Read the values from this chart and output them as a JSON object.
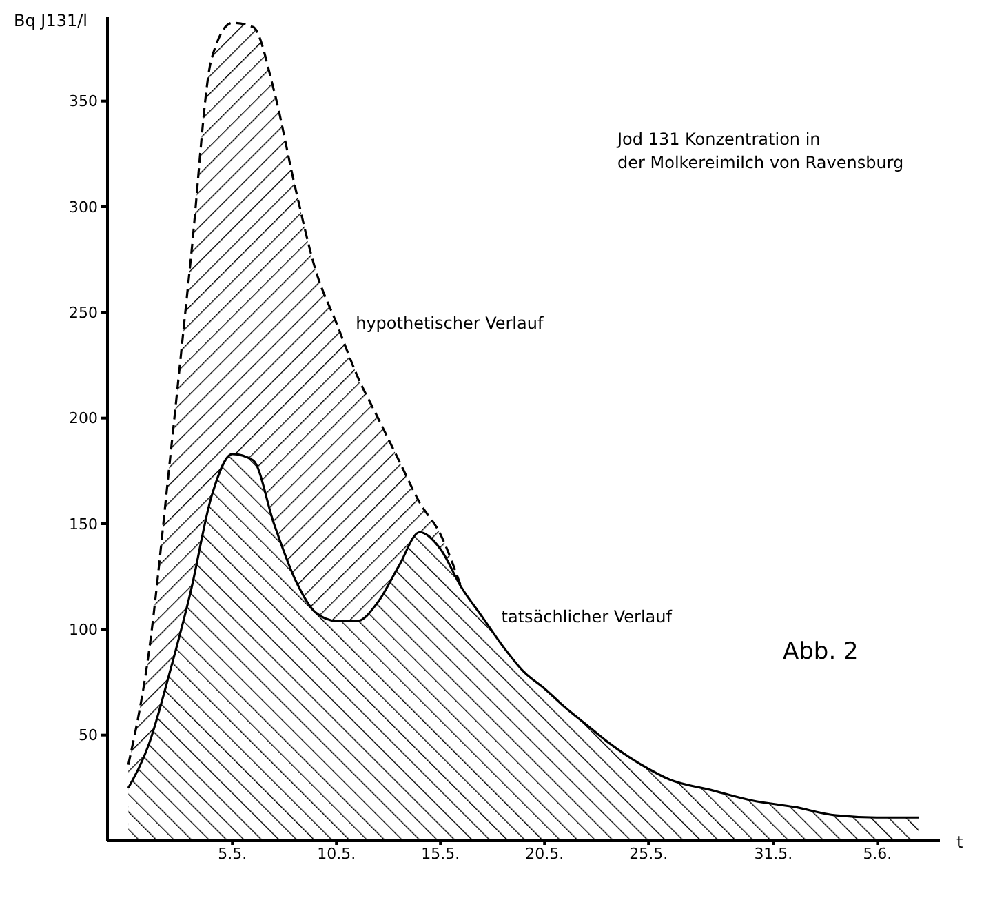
{
  "chart_data": {
    "type": "area",
    "title": "Jod 131 Konzentration in\nder Molkereimilch von Ravensburg",
    "ylabel": "Bq J131/l",
    "xlabel": "t",
    "x": [
      "--04-30",
      "--05-01",
      "--05-02",
      "--05-03",
      "--05-04",
      "--05-05",
      "--05-06",
      "--05-07",
      "--05-08",
      "--05-09",
      "--05-10",
      "--05-11",
      "--05-12",
      "--05-13",
      "--05-14",
      "--05-15",
      "--05-16",
      "--05-17",
      "--05-18",
      "--05-19",
      "--05-20",
      "--05-21",
      "--05-22",
      "--05-23",
      "--05-24",
      "--05-25",
      "--05-26",
      "--05-28",
      "--05-30",
      "--06-01",
      "--06-03",
      "--06-05",
      "--06-07"
    ],
    "series": [
      {
        "name": "hypothetischer Verlauf",
        "color": "#000000",
        "line_style": "dashed",
        "values": [
          36,
          90,
          180,
          275,
          370,
          387,
          385,
          355,
          310,
          270,
          245,
          220,
          200,
          180,
          160,
          145,
          120,
          null,
          null,
          null,
          null,
          null,
          null,
          null,
          null,
          null,
          null,
          null,
          null,
          null,
          null,
          null,
          null
        ]
      },
      {
        "name": "tatsächlicher Verlauf",
        "color": "#000000",
        "line_style": "solid",
        "values": [
          25,
          46,
          80,
          118,
          163,
          183,
          180,
          150,
          124,
          108,
          104,
          104,
          113,
          130,
          146,
          138,
          120,
          106,
          92,
          80,
          72,
          63,
          55,
          47,
          40,
          34,
          29,
          24,
          19,
          16,
          12,
          11,
          11
        ]
      }
    ],
    "xlim": [
      "--04-29",
      "--06-08"
    ],
    "xticks": [
      {
        "value": "--05-05",
        "label": "5.5."
      },
      {
        "value": "--05-10",
        "label": "10.5."
      },
      {
        "value": "--05-15",
        "label": "15.5."
      },
      {
        "value": "--05-20",
        "label": "20.5."
      },
      {
        "value": "--05-25",
        "label": "25.5."
      },
      {
        "value": "--05-31",
        "label": "31.5."
      },
      {
        "value": "--06-05",
        "label": "5.6."
      }
    ],
    "ylim": [
      0,
      390
    ],
    "yticks": [
      50,
      100,
      150,
      200,
      250,
      300,
      350
    ],
    "grid": false,
    "legend": false,
    "annotations": [
      "Abb. 2"
    ]
  }
}
